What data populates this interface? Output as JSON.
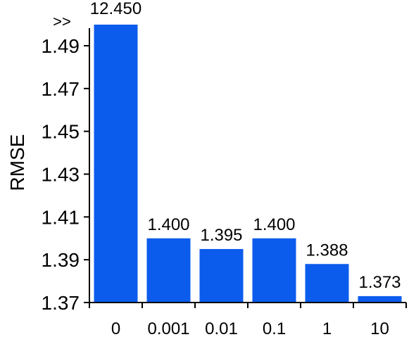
{
  "chart_data": {
    "type": "bar",
    "ylabel": "RMSE",
    "categories": [
      "0",
      "0.001",
      "0.01",
      "0.1",
      "1",
      "10"
    ],
    "values": [
      12.45,
      1.4,
      1.395,
      1.4,
      1.388,
      1.373
    ],
    "value_labels": [
      "12.450",
      "1.400",
      "1.395",
      "1.400",
      "1.388",
      "1.373"
    ],
    "ylim": [
      1.37,
      1.5
    ],
    "yticks": [
      "1.37",
      "1.39",
      "1.41",
      "1.43",
      "1.45",
      "1.47",
      "1.49"
    ],
    "clipped_marker": ">>",
    "grid": false,
    "bar_color": "#0b5ced"
  }
}
